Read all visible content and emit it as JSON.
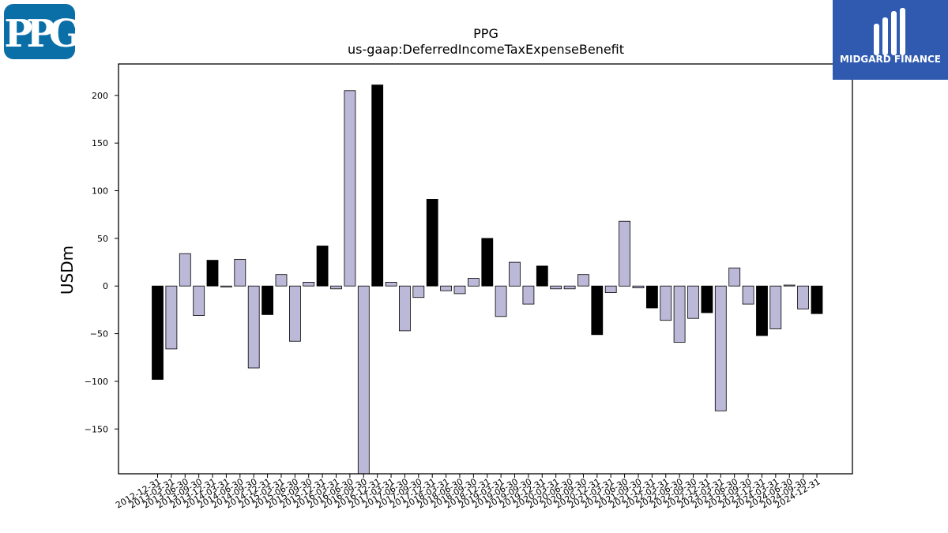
{
  "logos": {
    "left": {
      "text": "PPG",
      "color": "#0a6fa6"
    },
    "right": {
      "text": "MIDGARD FINANCE",
      "color": "#2f5ab0"
    }
  },
  "chart_data": {
    "type": "bar",
    "title": "PPG",
    "subtitle": "us-gaap:DeferredIncomeTaxExpenseBenefit",
    "ylabel": "USDm",
    "xlabel": "",
    "ylim": [
      -197,
      233
    ],
    "yticks": [
      -150,
      -100,
      -50,
      0,
      50,
      100,
      150,
      200
    ],
    "grid": false,
    "colors": {
      "quarter_end_year": "#000000",
      "other": "#bcb8d8",
      "edge": "#000000"
    },
    "categories": [
      "2012-12-31",
      "2013-03-31",
      "2013-06-30",
      "2013-09-30",
      "2013-12-31",
      "2014-03-31",
      "2014-06-30",
      "2014-09-30",
      "2014-12-31",
      "2015-03-31",
      "2015-06-30",
      "2015-09-30",
      "2015-12-31",
      "2016-03-31",
      "2016-06-30",
      "2016-09-30",
      "2016-12-31",
      "2017-03-31",
      "2017-06-30",
      "2017-09-30",
      "2017-12-31",
      "2018-03-31",
      "2018-06-30",
      "2018-09-30",
      "2018-12-31",
      "2019-03-31",
      "2019-06-30",
      "2019-09-30",
      "2019-12-31",
      "2020-03-31",
      "2020-06-30",
      "2020-09-30",
      "2020-12-31",
      "2021-03-31",
      "2021-06-30",
      "2021-09-30",
      "2021-12-31",
      "2022-03-31",
      "2022-06-30",
      "2022-09-30",
      "2022-12-31",
      "2023-03-31",
      "2023-06-30",
      "2023-09-30",
      "2023-12-31",
      "2024-03-31",
      "2024-06-30",
      "2024-09-30",
      "2024-12-31"
    ],
    "values": [
      -98,
      -66,
      34,
      -31,
      27,
      -1,
      28,
      -86,
      -30,
      12,
      -58,
      4,
      42,
      -3,
      205,
      -200,
      211,
      4,
      -47,
      -12,
      91,
      -5,
      -8,
      8,
      50,
      -32,
      25,
      -19,
      21,
      -3,
      -3,
      12,
      -51,
      -7,
      68,
      -2,
      -23,
      -36,
      -59,
      -34,
      -28,
      -131,
      19,
      -19,
      -52,
      -45,
      1,
      -24,
      -29
    ]
  }
}
